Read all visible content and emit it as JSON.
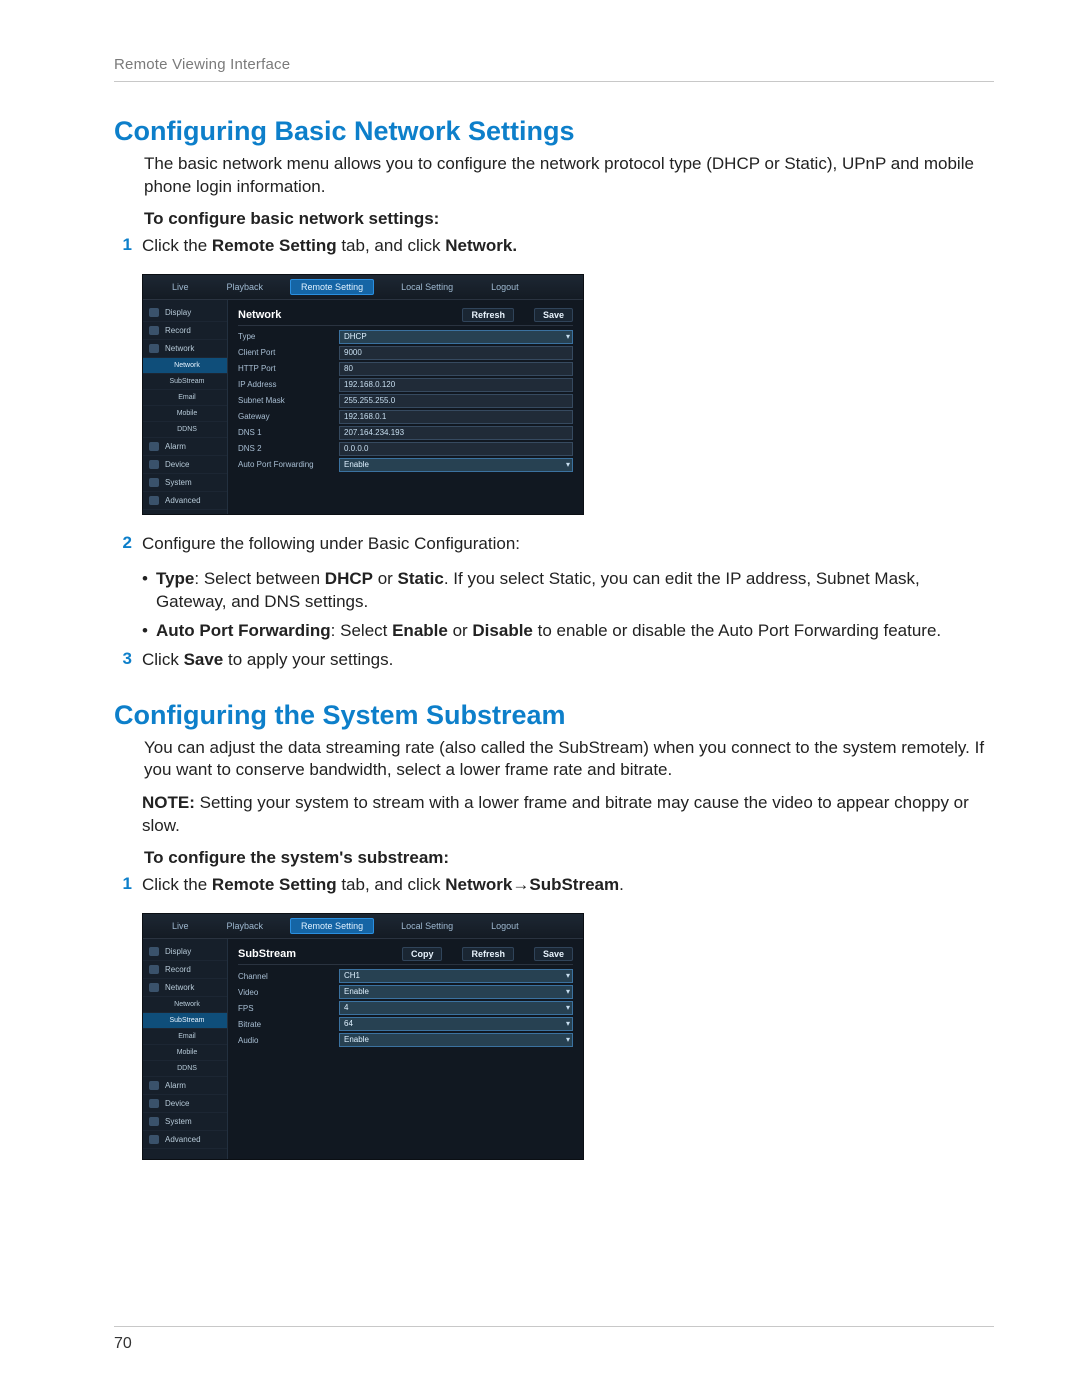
{
  "meta": {
    "header_text": "Remote Viewing Interface",
    "page_number": "70",
    "accent_color": "#0d7fca",
    "body_color": "#222222",
    "muted_color": "#7a7a7a",
    "rule_color": "#c8c8c8"
  },
  "section1": {
    "title": "Configuring Basic Network Settings",
    "intro": "The basic network menu allows you to configure the network protocol type (DHCP or Static), UPnP and mobile phone login information.",
    "sub_heading": "To configure basic network settings:",
    "step1_pre": "Click the ",
    "step1_bold1": "Remote Setting",
    "step1_mid": " tab, and click ",
    "step1_bold2": "Network.",
    "step2": "Configure the following under Basic Configuration:",
    "bullet1_label": "Type",
    "bullet1_mid": ": Select between ",
    "bullet1_opt1": "DHCP",
    "bullet1_or": " or ",
    "bullet1_opt2": "Static",
    "bullet1_rest": ". If you select Static, you can edit the IP address, Subnet Mask, Gateway, and DNS settings.",
    "bullet2_label": "Auto Port Forwarding",
    "bullet2_mid": ": Select ",
    "bullet2_en": "Enable",
    "bullet2_or": " or ",
    "bullet2_dis": "Disable",
    "bullet2_rest": " to enable or disable the Auto Port Forwarding feature.",
    "step3_a": "Click ",
    "step3_b": "Save",
    "step3_c": " to apply your settings."
  },
  "section2": {
    "title": "Configuring the System Substream",
    "intro": "You can adjust the data streaming rate (also called the SubStream) when you connect to the system remotely. If you want to conserve bandwidth, select a lower frame rate and bitrate.",
    "note_label": "NOTE:",
    "note_body": "Setting your system to stream with a lower frame and bitrate may cause the video to appear choppy or slow.",
    "sub_heading": "To configure the system's substream:",
    "step1_pre": "Click the ",
    "step1_bold1": "Remote Setting",
    "step1_mid": " tab, and click ",
    "step1_bold2": "Network→SubStream",
    "step1_end": "."
  },
  "dvr": {
    "tabs": [
      "Live",
      "Playback",
      "Remote Setting",
      "Local Setting",
      "Logout"
    ],
    "active_tab_index": 2,
    "sidebar": [
      "Display",
      "Record",
      "Network",
      "Alarm",
      "Device",
      "System",
      "Advanced"
    ],
    "network_subs": [
      "Network",
      "SubStream",
      "Email",
      "Mobile",
      "DDNS"
    ],
    "btn_refresh": "Refresh",
    "btn_save": "Save",
    "btn_copy": "Copy",
    "panel1": {
      "title": "Network",
      "rows": [
        {
          "label": "Type",
          "value": "DHCP",
          "select": true
        },
        {
          "label": "Client Port",
          "value": "9000"
        },
        {
          "label": "HTTP Port",
          "value": "80"
        },
        {
          "label": "IP Address",
          "value": "192.168.0.120"
        },
        {
          "label": "Subnet Mask",
          "value": "255.255.255.0"
        },
        {
          "label": "Gateway",
          "value": "192.168.0.1"
        },
        {
          "label": "DNS 1",
          "value": "207.164.234.193"
        },
        {
          "label": "DNS 2",
          "value": "0.0.0.0"
        },
        {
          "label": "Auto Port Forwarding",
          "value": "Enable",
          "select": true
        }
      ]
    },
    "panel2": {
      "title": "SubStream",
      "rows": [
        {
          "label": "Channel",
          "value": "CH1",
          "select": true
        },
        {
          "label": "Video",
          "value": "Enable",
          "select": true
        },
        {
          "label": "FPS",
          "value": "4",
          "select": true
        },
        {
          "label": "Bitrate",
          "value": "64",
          "select": true
        },
        {
          "label": "Audio",
          "value": "Enable",
          "select": true
        }
      ]
    },
    "bg": "#111821",
    "panel_bg": "#161f2a",
    "field_bg": "#202b38",
    "field_border": "#364a60",
    "highlight": "#1565a5"
  }
}
